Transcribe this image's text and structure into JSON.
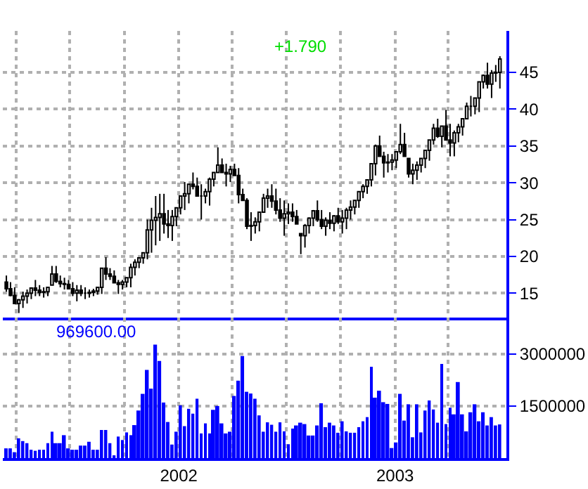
{
  "chart_data": [
    {
      "type": "candlestick",
      "color": "#000000",
      "grid": true,
      "tick_labels": "y",
      "annotations": [
        "+1.790"
      ],
      "xlim": [
        "2001-03-10",
        "2003-07-08"
      ],
      "xticks": [
        {
          "value": "2001-04-01",
          "label": null
        },
        {
          "value": "2001-07-01",
          "label": null
        },
        {
          "value": "2001-10-01",
          "label": null
        },
        {
          "value": "2002-01-01",
          "label": null
        },
        {
          "value": "2002-04-01",
          "label": null
        },
        {
          "value": "2002-07-01",
          "label": null
        },
        {
          "value": "2002-10-01",
          "label": null
        },
        {
          "value": "2003-01-01",
          "label": null
        },
        {
          "value": "2003-04-01",
          "label": null
        }
      ],
      "ylim": [
        11.7,
        50.6
      ],
      "yticks": [
        15,
        20,
        25,
        30,
        35,
        40,
        45
      ],
      "x": [
        "2001-03-16",
        "2001-03-23",
        "2001-03-30",
        "2001-04-06",
        "2001-04-13",
        "2001-04-20",
        "2001-04-27",
        "2001-05-04",
        "2001-05-11",
        "2001-05-18",
        "2001-05-25",
        "2001-06-01",
        "2001-06-08",
        "2001-06-15",
        "2001-06-22",
        "2001-06-29",
        "2001-07-06",
        "2001-07-13",
        "2001-07-20",
        "2001-07-27",
        "2001-08-03",
        "2001-08-10",
        "2001-08-17",
        "2001-08-24",
        "2001-08-31",
        "2001-09-07",
        "2001-09-14",
        "2001-09-21",
        "2001-09-28",
        "2001-10-05",
        "2001-10-12",
        "2001-10-19",
        "2001-10-26",
        "2001-11-02",
        "2001-11-09",
        "2001-11-16",
        "2001-11-23",
        "2001-11-30",
        "2001-12-07",
        "2001-12-14",
        "2001-12-21",
        "2001-12-28",
        "2002-01-04",
        "2002-01-11",
        "2002-01-18",
        "2002-01-25",
        "2002-02-01",
        "2002-02-08",
        "2002-02-15",
        "2002-02-22",
        "2002-03-01",
        "2002-03-08",
        "2002-03-15",
        "2002-03-22",
        "2002-03-29",
        "2002-04-05",
        "2002-04-12",
        "2002-04-19",
        "2002-04-26",
        "2002-05-03",
        "2002-05-10",
        "2002-05-17",
        "2002-05-24",
        "2002-05-31",
        "2002-06-07",
        "2002-06-14",
        "2002-06-21",
        "2002-06-28",
        "2002-07-05",
        "2002-07-12",
        "2002-07-19",
        "2002-07-26",
        "2002-08-02",
        "2002-08-09",
        "2002-08-16",
        "2002-08-23",
        "2002-08-30",
        "2002-09-06",
        "2002-09-13",
        "2002-09-20",
        "2002-09-27",
        "2002-10-04",
        "2002-10-11",
        "2002-10-18",
        "2002-10-25",
        "2002-11-01",
        "2002-11-08",
        "2002-11-15",
        "2002-11-22",
        "2002-11-29",
        "2002-12-06",
        "2002-12-13",
        "2002-12-20",
        "2002-12-27",
        "2003-01-03",
        "2003-01-10",
        "2003-01-17",
        "2003-01-24",
        "2003-01-31",
        "2003-02-07",
        "2003-02-14",
        "2003-02-21",
        "2003-02-28",
        "2003-03-07",
        "2003-03-14",
        "2003-03-21",
        "2003-03-28",
        "2003-04-04",
        "2003-04-11",
        "2003-04-18",
        "2003-04-25",
        "2003-05-02",
        "2003-05-09",
        "2003-05-16",
        "2003-05-23",
        "2003-05-30",
        "2003-06-06",
        "2003-06-13",
        "2003-06-20",
        "2003-06-27"
      ],
      "ohlc": [
        [
          16.5,
          17.4,
          15.2,
          15.6
        ],
        [
          15.6,
          16.5,
          14.6,
          14.7
        ],
        [
          14.7,
          15.8,
          13.6,
          13.6
        ],
        [
          13.6,
          14.2,
          12.3,
          14.1
        ],
        [
          14.1,
          15.2,
          13.0,
          14.6
        ],
        [
          14.6,
          15.5,
          13.6,
          15.0
        ],
        [
          15.0,
          15.8,
          14.2,
          15.7
        ],
        [
          15.7,
          16.8,
          14.6,
          15.4
        ],
        [
          15.4,
          16.1,
          14.6,
          15.1
        ],
        [
          15.1,
          15.8,
          14.4,
          15.2
        ],
        [
          15.2,
          15.8,
          14.6,
          15.8
        ],
        [
          16.1,
          18.7,
          16.1,
          17.6
        ],
        [
          17.6,
          18.7,
          16.4,
          16.6
        ],
        [
          16.6,
          17.4,
          15.8,
          16.3
        ],
        [
          16.3,
          17.1,
          15.5,
          16.2
        ],
        [
          16.2,
          16.8,
          15.5,
          15.6
        ],
        [
          15.6,
          16.5,
          14.6,
          15.0
        ],
        [
          15.0,
          16.1,
          13.9,
          15.4
        ],
        [
          15.4,
          16.1,
          14.6,
          15.0
        ],
        [
          15.0,
          15.8,
          14.2,
          15.0
        ],
        [
          15.0,
          15.5,
          14.4,
          15.1
        ],
        [
          15.1,
          15.6,
          14.6,
          15.3
        ],
        [
          15.3,
          15.8,
          14.8,
          15.8
        ],
        [
          15.8,
          18.4,
          14.9,
          18.4
        ],
        [
          18.4,
          19.9,
          16.8,
          17.6
        ],
        [
          17.6,
          18.4,
          16.8,
          17.3
        ],
        [
          17.3,
          18.1,
          16.4,
          16.4
        ],
        [
          16.4,
          16.8,
          14.9,
          16.2
        ],
        [
          16.2,
          16.8,
          15.5,
          16.5
        ],
        [
          16.5,
          17.1,
          15.8,
          17.1
        ],
        [
          17.1,
          19.0,
          15.8,
          18.5
        ],
        [
          18.5,
          19.6,
          17.4,
          19.2
        ],
        [
          19.2,
          19.9,
          18.4,
          19.8
        ],
        [
          19.8,
          20.5,
          19.0,
          20.5
        ],
        [
          20.5,
          25.0,
          19.6,
          23.6
        ],
        [
          23.6,
          26.6,
          20.5,
          24.9
        ],
        [
          24.9,
          28.2,
          21.5,
          25.3
        ],
        [
          25.3,
          28.5,
          22.1,
          25.8
        ],
        [
          25.8,
          28.5,
          23.1,
          24.4
        ],
        [
          24.4,
          26.3,
          22.5,
          24.2
        ],
        [
          24.2,
          26.3,
          22.1,
          25.4
        ],
        [
          25.4,
          26.6,
          24.1,
          26.6
        ],
        [
          26.6,
          28.2,
          25.7,
          28.2
        ],
        [
          28.2,
          30.1,
          26.3,
          28.5
        ],
        [
          28.5,
          29.8,
          27.2,
          29.8
        ],
        [
          29.8,
          31.4,
          29.1,
          29.5
        ],
        [
          29.5,
          30.7,
          28.2,
          28.2
        ],
        [
          28.2,
          29.8,
          25.0,
          28.2
        ],
        [
          28.2,
          29.2,
          27.2,
          28.8
        ],
        [
          28.8,
          30.7,
          26.9,
          30.5
        ],
        [
          30.5,
          31.4,
          29.5,
          31.4
        ],
        [
          31.4,
          34.8,
          31.4,
          32.4
        ],
        [
          32.4,
          33.3,
          31.4,
          31.4
        ],
        [
          31.4,
          32.6,
          29.5,
          31.2
        ],
        [
          31.2,
          32.3,
          30.1,
          31.8
        ],
        [
          31.8,
          32.6,
          31.0,
          31.0
        ],
        [
          31.0,
          32.0,
          27.2,
          28.4
        ],
        [
          28.4,
          29.2,
          27.6,
          27.6
        ],
        [
          27.6,
          27.9,
          23.7,
          24.1
        ],
        [
          24.1,
          26.0,
          22.1,
          24.2
        ],
        [
          24.2,
          25.3,
          23.1,
          24.7
        ],
        [
          24.7,
          26.0,
          23.4,
          26.0
        ],
        [
          26.0,
          28.5,
          26.0,
          27.9
        ],
        [
          27.9,
          29.2,
          26.6,
          28.2
        ],
        [
          28.2,
          29.8,
          26.6,
          27.5
        ],
        [
          27.5,
          29.2,
          25.7,
          26.3
        ],
        [
          26.3,
          27.9,
          24.7,
          25.2
        ],
        [
          25.2,
          27.6,
          22.8,
          25.8
        ],
        [
          25.8,
          27.2,
          24.4,
          26.0
        ],
        [
          26.0,
          27.2,
          24.7,
          25.4
        ],
        [
          25.4,
          26.3,
          24.4,
          24.4
        ],
        [
          23.1,
          23.1,
          20.3,
          22.8
        ],
        [
          22.8,
          24.4,
          21.2,
          24.2
        ],
        [
          24.2,
          25.3,
          23.1,
          25.2
        ],
        [
          25.2,
          26.3,
          24.1,
          26.2
        ],
        [
          26.2,
          27.6,
          24.7,
          25.0
        ],
        [
          25.0,
          26.3,
          23.7,
          24.1
        ],
        [
          24.1,
          25.3,
          22.8,
          24.9
        ],
        [
          24.9,
          26.0,
          23.7,
          24.5
        ],
        [
          24.5,
          25.6,
          23.4,
          25.5
        ],
        [
          25.5,
          26.6,
          24.4,
          24.7
        ],
        [
          24.7,
          26.3,
          23.1,
          25.2
        ],
        [
          25.2,
          26.6,
          23.7,
          26.3
        ],
        [
          26.3,
          27.6,
          25.0,
          26.7
        ],
        [
          26.7,
          27.6,
          25.7,
          27.6
        ],
        [
          27.6,
          28.8,
          26.6,
          28.8
        ],
        [
          28.8,
          29.8,
          27.9,
          29.5
        ],
        [
          29.5,
          30.4,
          28.5,
          30.4
        ],
        [
          30.4,
          32.6,
          29.5,
          32.6
        ],
        [
          32.6,
          35.2,
          31.0,
          35.0
        ],
        [
          35.0,
          36.4,
          33.6,
          33.6
        ],
        [
          33.6,
          34.2,
          30.7,
          32.7
        ],
        [
          32.7,
          33.9,
          31.4,
          32.8
        ],
        [
          32.8,
          33.9,
          31.7,
          33.1
        ],
        [
          33.1,
          34.2,
          32.0,
          34.2
        ],
        [
          34.2,
          38.0,
          33.9,
          35.2
        ],
        [
          35.2,
          36.8,
          33.6,
          33.6
        ],
        [
          33.3,
          33.3,
          30.7,
          31.2
        ],
        [
          31.2,
          32.6,
          29.8,
          31.7
        ],
        [
          31.7,
          32.9,
          30.4,
          32.4
        ],
        [
          32.4,
          33.3,
          31.4,
          33.3
        ],
        [
          33.3,
          34.5,
          32.0,
          34.4
        ],
        [
          34.4,
          35.8,
          33.0,
          35.8
        ],
        [
          35.8,
          38.0,
          35.2,
          37.4
        ],
        [
          37.4,
          38.7,
          36.1,
          36.3
        ],
        [
          36.3,
          37.7,
          34.8,
          37.7
        ],
        [
          37.7,
          39.9,
          35.8,
          35.8
        ],
        [
          35.8,
          38.0,
          33.6,
          35.4
        ],
        [
          35.4,
          37.1,
          33.6,
          36.8
        ],
        [
          36.8,
          38.0,
          35.5,
          37.6
        ],
        [
          37.6,
          38.7,
          36.4,
          38.7
        ],
        [
          38.7,
          40.9,
          38.7,
          40.4
        ],
        [
          40.4,
          41.8,
          39.0,
          40.4
        ],
        [
          40.4,
          41.5,
          39.3,
          41.5
        ],
        [
          41.5,
          43.7,
          39.6,
          43.7
        ],
        [
          43.7,
          44.7,
          42.8,
          44.6
        ],
        [
          44.6,
          46.3,
          42.8,
          43.4
        ],
        [
          43.4,
          45.3,
          41.5,
          44.9
        ],
        [
          44.9,
          46.0,
          43.7,
          45.0
        ],
        [
          45.0,
          47.2,
          42.8,
          46.8
        ]
      ]
    },
    {
      "type": "bar",
      "color": "#0000ff",
      "grid": true,
      "annotations": [
        "969600.00"
      ],
      "xlim": [
        "2001-03-10",
        "2003-07-08"
      ],
      "xticks": [
        {
          "value": "2001-04-01",
          "label": null
        },
        {
          "value": "2001-07-01",
          "label": null
        },
        {
          "value": "2001-10-01",
          "label": null
        },
        {
          "value": "2002-01-01",
          "label": "2002"
        },
        {
          "value": "2002-04-01",
          "label": null
        },
        {
          "value": "2002-07-01",
          "label": null
        },
        {
          "value": "2002-10-01",
          "label": null
        },
        {
          "value": "2003-01-01",
          "label": "2003"
        },
        {
          "value": "2003-04-01",
          "label": null
        }
      ],
      "ylim": [
        0,
        4050000
      ],
      "yticks": [
        1500000,
        3000000
      ],
      "x": [
        "2001-03-16",
        "2001-03-23",
        "2001-03-30",
        "2001-04-06",
        "2001-04-13",
        "2001-04-20",
        "2001-04-27",
        "2001-05-04",
        "2001-05-11",
        "2001-05-18",
        "2001-05-25",
        "2001-06-01",
        "2001-06-08",
        "2001-06-15",
        "2001-06-22",
        "2001-06-29",
        "2001-07-06",
        "2001-07-13",
        "2001-07-20",
        "2001-07-27",
        "2001-08-03",
        "2001-08-10",
        "2001-08-17",
        "2001-08-24",
        "2001-08-31",
        "2001-09-07",
        "2001-09-14",
        "2001-09-21",
        "2001-09-28",
        "2001-10-05",
        "2001-10-12",
        "2001-10-19",
        "2001-10-26",
        "2001-11-02",
        "2001-11-09",
        "2001-11-16",
        "2001-11-23",
        "2001-11-30",
        "2001-12-07",
        "2001-12-14",
        "2001-12-21",
        "2001-12-28",
        "2002-01-04",
        "2002-01-11",
        "2002-01-18",
        "2002-01-25",
        "2002-02-01",
        "2002-02-08",
        "2002-02-15",
        "2002-02-22",
        "2002-03-01",
        "2002-03-08",
        "2002-03-15",
        "2002-03-22",
        "2002-03-29",
        "2002-04-05",
        "2002-04-12",
        "2002-04-19",
        "2002-04-26",
        "2002-05-03",
        "2002-05-10",
        "2002-05-17",
        "2002-05-24",
        "2002-05-31",
        "2002-06-07",
        "2002-06-14",
        "2002-06-21",
        "2002-06-28",
        "2002-07-05",
        "2002-07-12",
        "2002-07-19",
        "2002-07-26",
        "2002-08-02",
        "2002-08-09",
        "2002-08-16",
        "2002-08-23",
        "2002-08-30",
        "2002-09-06",
        "2002-09-13",
        "2002-09-20",
        "2002-09-27",
        "2002-10-04",
        "2002-10-11",
        "2002-10-18",
        "2002-10-25",
        "2002-11-01",
        "2002-11-08",
        "2002-11-15",
        "2002-11-22",
        "2002-11-29",
        "2002-12-06",
        "2002-12-13",
        "2002-12-20",
        "2002-12-27",
        "2003-01-03",
        "2003-01-10",
        "2003-01-17",
        "2003-01-24",
        "2003-01-31",
        "2003-02-07",
        "2003-02-14",
        "2003-02-21",
        "2003-02-28",
        "2003-03-07",
        "2003-03-14",
        "2003-03-21",
        "2003-03-28",
        "2003-04-04",
        "2003-04-11",
        "2003-04-18",
        "2003-04-25",
        "2003-05-02",
        "2003-05-09",
        "2003-05-16",
        "2003-05-23",
        "2003-05-30",
        "2003-06-06",
        "2003-06-13",
        "2003-06-20",
        "2003-06-27"
      ],
      "values": [
        280000,
        280000,
        170000,
        570000,
        490000,
        430000,
        240000,
        210000,
        240000,
        240000,
        430000,
        760000,
        430000,
        430000,
        660000,
        280000,
        240000,
        240000,
        360000,
        360000,
        470000,
        240000,
        240000,
        810000,
        810000,
        430000,
        80000,
        620000,
        520000,
        740000,
        660000,
        950000,
        1370000,
        1850000,
        2540000,
        2000000,
        3270000,
        2800000,
        1600000,
        1040000,
        390000,
        760000,
        1520000,
        920000,
        1420000,
        1280000,
        1710000,
        710000,
        1000000,
        710000,
        1390000,
        1500000,
        1000000,
        710000,
        760000,
        1790000,
        2230000,
        2940000,
        1910000,
        1860000,
        1710000,
        1230000,
        760000,
        1030000,
        960000,
        760000,
        1030000,
        770000,
        400000,
        850000,
        940000,
        1020000,
        980000,
        650000,
        650000,
        940000,
        1580000,
        890000,
        1020000,
        940000,
        730000,
        1060000,
        770000,
        730000,
        730000,
        890000,
        1060000,
        1180000,
        2630000,
        1740000,
        1940000,
        1610000,
        1560000,
        290000,
        450000,
        1850000,
        1080000,
        1550000,
        600000,
        1550000,
        740000,
        1370000,
        1660000,
        1400000,
        1020000,
        2710000,
        980000,
        1450000,
        1260000,
        2190000,
        1260000,
        770000,
        1320000,
        1550000,
        1060000,
        1320000,
        940000,
        1180000,
        940000,
        969600
      ]
    }
  ]
}
